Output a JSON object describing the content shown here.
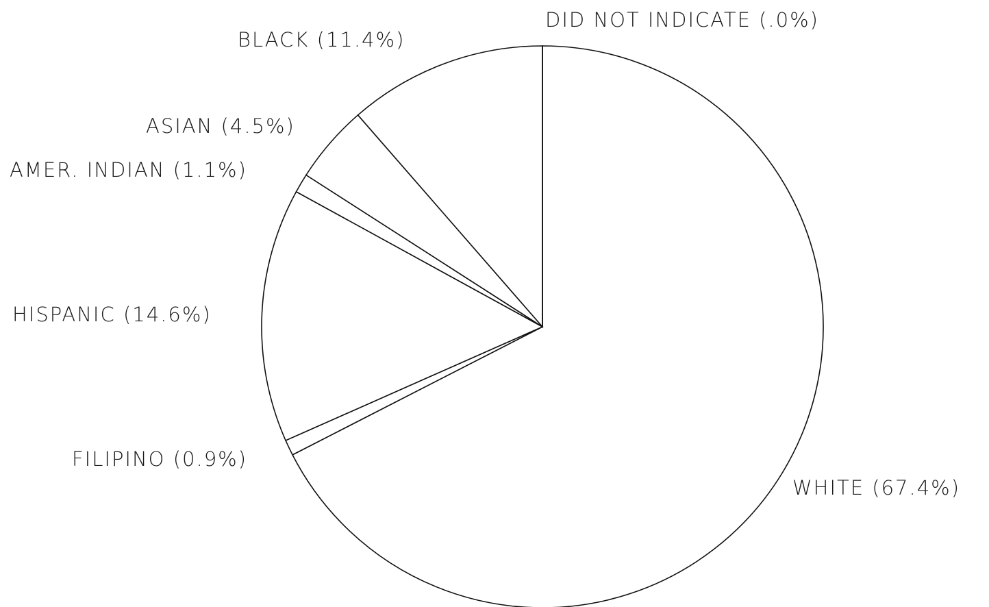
{
  "chart_data": {
    "type": "pie",
    "title": "",
    "start_angle_deg": 0,
    "direction": "clockwise",
    "slices": [
      {
        "label": "WHITE (67.4%)",
        "category": "WHITE",
        "value": 67.4
      },
      {
        "label": "FILIPINO (0.9%)",
        "category": "FILIPINO",
        "value": 0.9
      },
      {
        "label": "HISPANIC (14.6%)",
        "category": "HISPANIC",
        "value": 14.6
      },
      {
        "label": "AMER. INDIAN (1.1%)",
        "category": "AMER. INDIAN",
        "value": 1.1
      },
      {
        "label": "ASIAN (4.5%)",
        "category": "ASIAN",
        "value": 4.5
      },
      {
        "label": "BLACK (11.4%)",
        "category": "BLACK",
        "value": 11.4
      },
      {
        "label": "DID NOT INDICATE (.0%)",
        "category": "DID NOT INDICATE",
        "value": 0.0
      }
    ],
    "colors": {
      "fill": "#ffffff",
      "stroke": "#111111",
      "text": "#1a1a1a"
    }
  }
}
